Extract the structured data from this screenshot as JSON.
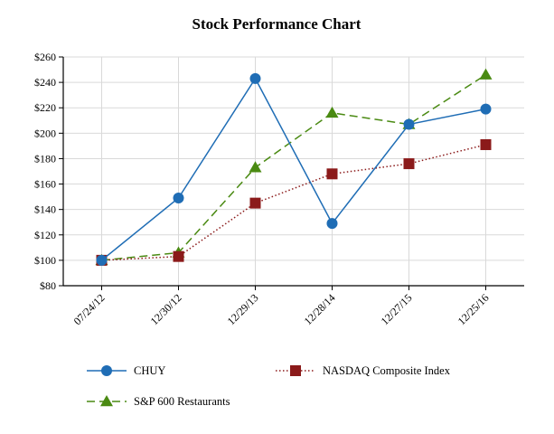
{
  "chart_data": {
    "type": "line",
    "title": "Stock Performance Chart",
    "xlabel": "",
    "ylabel": "",
    "categories": [
      "07/24/12",
      "12/30/12",
      "12/29/13",
      "12/28/14",
      "12/27/15",
      "12/25/16"
    ],
    "ylim": [
      80,
      260
    ],
    "y_ticks": [
      "$80",
      "$100",
      "$120",
      "$140",
      "$160",
      "$180",
      "$200",
      "$220",
      "$240",
      "$260"
    ],
    "grid": true,
    "legend_position": "bottom",
    "series": [
      {
        "name": "CHUY",
        "values": [
          100,
          149,
          243,
          129,
          207,
          219
        ],
        "color": "#1f6db5",
        "marker": "circle",
        "line_style": "solid"
      },
      {
        "name": "NASDAQ Composite Index",
        "values": [
          100,
          103,
          145,
          168,
          176,
          191
        ],
        "color": "#8b1a1a",
        "marker": "square",
        "line_style": "dotted"
      },
      {
        "name": "S&P 600 Restaurants",
        "values": [
          100,
          106,
          173,
          216,
          207,
          246
        ],
        "color": "#4a8a12",
        "marker": "triangle",
        "line_style": "dashed"
      }
    ]
  }
}
